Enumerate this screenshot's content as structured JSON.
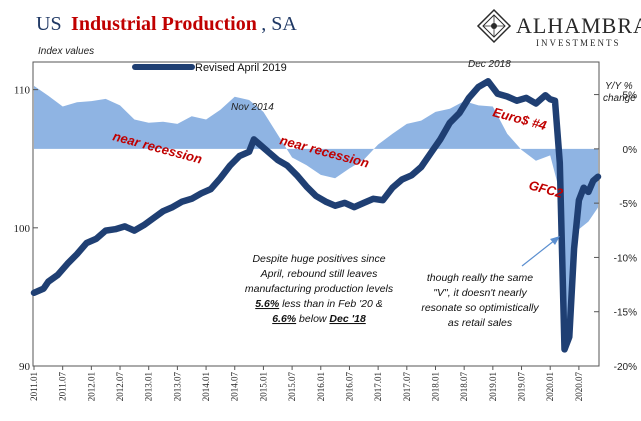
{
  "title": {
    "part1": "US",
    "part2": "Industrial Production",
    "part3": ", SA"
  },
  "logo": {
    "name": "ALHAMBRA",
    "sub": "INVESTMENTS"
  },
  "colors": {
    "line": "#1f3f73",
    "area": "#8fb4e3",
    "title_blue": "#1f3864",
    "title_red": "#c00000",
    "annotation_red": "#c00000"
  },
  "chart_data": {
    "type": "line",
    "left_axis_label": "Index values",
    "right_axis_label_line1": "Y/Y %",
    "right_axis_label_line2": "change",
    "ylim_left": [
      90,
      112
    ],
    "yticks_left": [
      {
        "value": 90,
        "label": "90"
      },
      {
        "value": 100,
        "label": "100"
      },
      {
        "value": 110,
        "label": "110"
      }
    ],
    "ylim_right": [
      -20,
      8
    ],
    "yticks_right": [
      {
        "value": 5,
        "label": "5%"
      },
      {
        "value": 0,
        "label": "0%"
      },
      {
        "value": -5,
        "label": "-5%"
      },
      {
        "value": -10,
        "label": "-10%"
      },
      {
        "value": -15,
        "label": "-15%"
      },
      {
        "value": -20,
        "label": "-20%"
      }
    ],
    "x_start": "2011-01",
    "x_end": "2020-11",
    "xticks": [
      "2011.01",
      "2011.07",
      "2012.01",
      "2012.07",
      "2013.01",
      "2013.07",
      "2014.01",
      "2014.07",
      "2015.01",
      "2015.07",
      "2016.01",
      "2016.07",
      "2017.01",
      "2017.07",
      "2018.01",
      "2018.07",
      "2019.01",
      "2019.07",
      "2020.01",
      "2020.07"
    ],
    "series": [
      {
        "name": "Revised April 2019",
        "axis": "left",
        "style": "line",
        "points": [
          [
            "2011-01",
            95.3
          ],
          [
            "2011-03",
            95.6
          ],
          [
            "2011-04",
            96.1
          ],
          [
            "2011-06",
            96.6
          ],
          [
            "2011-08",
            97.4
          ],
          [
            "2011-10",
            98.1
          ],
          [
            "2011-12",
            98.9
          ],
          [
            "2012-02",
            99.2
          ],
          [
            "2012-04",
            99.8
          ],
          [
            "2012-06",
            99.9
          ],
          [
            "2012-08",
            100.1
          ],
          [
            "2012-10",
            99.8
          ],
          [
            "2012-12",
            100.2
          ],
          [
            "2013-02",
            100.7
          ],
          [
            "2013-04",
            101.2
          ],
          [
            "2013-06",
            101.5
          ],
          [
            "2013-08",
            101.9
          ],
          [
            "2013-10",
            102.1
          ],
          [
            "2013-12",
            102.5
          ],
          [
            "2014-02",
            102.8
          ],
          [
            "2014-04",
            103.6
          ],
          [
            "2014-06",
            104.5
          ],
          [
            "2014-08",
            105.2
          ],
          [
            "2014-10",
            105.5
          ],
          [
            "2014-11",
            106.4
          ],
          [
            "2014-12",
            106.1
          ],
          [
            "2015-02",
            105.5
          ],
          [
            "2015-04",
            104.9
          ],
          [
            "2015-06",
            104.5
          ],
          [
            "2015-08",
            103.8
          ],
          [
            "2015-10",
            103.0
          ],
          [
            "2015-12",
            102.3
          ],
          [
            "2016-02",
            101.9
          ],
          [
            "2016-04",
            101.6
          ],
          [
            "2016-06",
            101.8
          ],
          [
            "2016-08",
            101.5
          ],
          [
            "2016-10",
            101.8
          ],
          [
            "2016-12",
            102.1
          ],
          [
            "2017-02",
            102.0
          ],
          [
            "2017-04",
            102.9
          ],
          [
            "2017-06",
            103.5
          ],
          [
            "2017-08",
            103.8
          ],
          [
            "2017-10",
            104.4
          ],
          [
            "2017-12",
            105.4
          ],
          [
            "2018-02",
            106.4
          ],
          [
            "2018-04",
            107.6
          ],
          [
            "2018-06",
            108.3
          ],
          [
            "2018-08",
            109.4
          ],
          [
            "2018-10",
            110.2
          ],
          [
            "2018-12",
            110.6
          ],
          [
            "2019-02",
            109.7
          ],
          [
            "2019-04",
            109.5
          ],
          [
            "2019-06",
            109.2
          ],
          [
            "2019-08",
            109.4
          ],
          [
            "2019-10",
            109.0
          ],
          [
            "2019-12",
            109.6
          ],
          [
            "2020-01",
            109.3
          ],
          [
            "2020-02",
            109.2
          ],
          [
            "2020-03",
            104.7
          ],
          [
            "2020-04",
            91.2
          ],
          [
            "2020-05",
            92.1
          ],
          [
            "2020-06",
            98.5
          ],
          [
            "2020-07",
            102.0
          ],
          [
            "2020-08",
            102.9
          ],
          [
            "2020-09",
            102.6
          ],
          [
            "2020-10",
            103.4
          ],
          [
            "2020-11",
            103.7
          ]
        ]
      },
      {
        "name": "Y/Y % change",
        "axis": "right",
        "style": "area",
        "points": [
          [
            "2011-01",
            5.8
          ],
          [
            "2011-04",
            4.9
          ],
          [
            "2011-07",
            3.9
          ],
          [
            "2011-10",
            4.3
          ],
          [
            "2012-01",
            4.4
          ],
          [
            "2012-04",
            4.6
          ],
          [
            "2012-07",
            4.0
          ],
          [
            "2012-10",
            2.7
          ],
          [
            "2013-01",
            2.4
          ],
          [
            "2013-04",
            2.5
          ],
          [
            "2013-07",
            2.3
          ],
          [
            "2013-10",
            3.0
          ],
          [
            "2014-01",
            2.7
          ],
          [
            "2014-04",
            3.6
          ],
          [
            "2014-07",
            4.8
          ],
          [
            "2014-10",
            4.5
          ],
          [
            "2015-01",
            3.4
          ],
          [
            "2015-04",
            1.3
          ],
          [
            "2015-07",
            -0.8
          ],
          [
            "2015-10",
            -1.5
          ],
          [
            "2016-01",
            -2.4
          ],
          [
            "2016-04",
            -2.7
          ],
          [
            "2016-07",
            -1.8
          ],
          [
            "2016-10",
            -1.0
          ],
          [
            "2017-01",
            0.4
          ],
          [
            "2017-04",
            1.4
          ],
          [
            "2017-07",
            2.3
          ],
          [
            "2017-10",
            2.6
          ],
          [
            "2018-01",
            3.4
          ],
          [
            "2018-04",
            3.7
          ],
          [
            "2018-07",
            4.4
          ],
          [
            "2018-10",
            4.0
          ],
          [
            "2019-01",
            3.9
          ],
          [
            "2019-04",
            1.4
          ],
          [
            "2019-07",
            -0.1
          ],
          [
            "2019-10",
            -1.1
          ],
          [
            "2020-01",
            -0.6
          ],
          [
            "2020-03",
            -4.0
          ],
          [
            "2020-04",
            -16.8
          ],
          [
            "2020-05",
            -15.4
          ],
          [
            "2020-06",
            -10.9
          ],
          [
            "2020-07",
            -7.4
          ],
          [
            "2020-09",
            -6.7
          ],
          [
            "2020-11",
            -5.4
          ]
        ]
      }
    ],
    "annotations": {
      "nov2014": "Nov 2014",
      "dec2018": "Dec 2018",
      "near_recession_1": "near recession",
      "near_recession_2": "near recession",
      "euro": "Euro$ #4",
      "gfc2": "GFC2",
      "note1_line1": "Despite huge positives since",
      "note1_line2": "April, rebound still leaves",
      "note1_line3": "manufacturing production levels",
      "note1_line4a": "5.6%",
      "note1_line4b": " less than in Feb '20 &",
      "note1_line5a": "6.6%",
      "note1_line5b": " below ",
      "note1_line5c": "Dec '18",
      "note2_line1": "though really the same",
      "note2_line2": "\"V\", it doesn't nearly",
      "note2_line3": "resonate so optimistically",
      "note2_line4": "as retail sales"
    }
  }
}
